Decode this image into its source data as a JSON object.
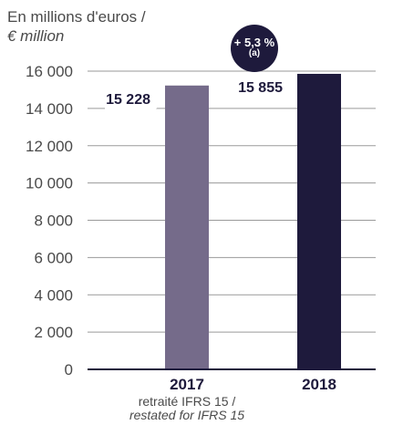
{
  "unit_label": {
    "line1": "En millions d'euros /",
    "line2": "€ million"
  },
  "badge": {
    "value": "+ 5,3 %",
    "note": "(a)"
  },
  "category_subtitle": {
    "line1": "retraité IFRS 15 /",
    "line2": "restated for IFRS 15"
  },
  "colors": {
    "bar_2017": "#756b8a",
    "bar_2018": "#1e1a3c",
    "grid": "#9a9a9a",
    "axis": "#1e1a3c"
  },
  "chart_data": {
    "type": "bar",
    "categories": [
      "2017",
      "2018"
    ],
    "values": [
      15228,
      15855
    ],
    "value_labels": [
      "15 228",
      "15 855"
    ],
    "ylim": [
      0,
      16000
    ],
    "yticks": [
      0,
      2000,
      4000,
      6000,
      8000,
      10000,
      12000,
      14000,
      16000
    ],
    "ytick_labels": [
      "0",
      "2 000",
      "4 000",
      "6 000",
      "8 000",
      "10 000",
      "12 000",
      "14 000",
      "16 000"
    ],
    "grid": true
  }
}
